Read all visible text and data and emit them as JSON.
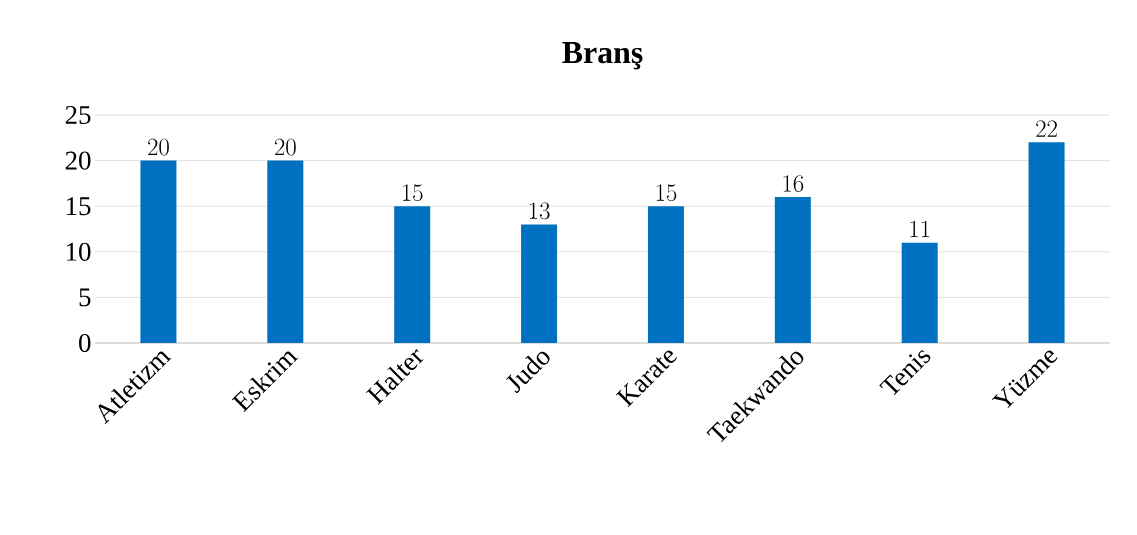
{
  "chart_data": {
    "type": "bar",
    "title": "Branş",
    "categories": [
      "Atletizm",
      "Eskrim",
      "Halter",
      "Judo",
      "Karate",
      "Taekwando",
      "Tenis",
      "Yüzme"
    ],
    "values": [
      20,
      20,
      15,
      13,
      15,
      16,
      11,
      22
    ],
    "color": "#0070c0",
    "ylim": [
      0,
      25
    ],
    "yticks": [
      0,
      5,
      10,
      15,
      20,
      25
    ],
    "grid": "y",
    "data_labels": true
  }
}
